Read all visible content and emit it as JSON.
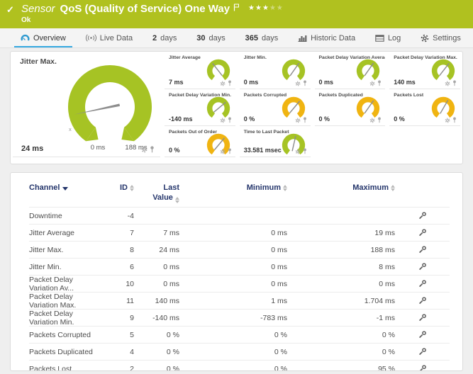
{
  "colors": {
    "header_bg": "#b0c11f",
    "gauge_green": "#a6c324",
    "gauge_yellow": "#f0b411",
    "accent_blue": "#36a9e1",
    "table_header": "#24356b"
  },
  "header": {
    "check_icon": "✓",
    "kind_label": "Sensor",
    "title": "QoS (Quality of Service) One Way",
    "status": "Ok",
    "stars_filled": "★★★",
    "stars_dim": "★★"
  },
  "tabs": [
    {
      "label": "Overview",
      "active": true
    },
    {
      "label": "Live Data"
    },
    {
      "number": "2",
      "label": "days"
    },
    {
      "number": "30",
      "label": "days"
    },
    {
      "number": "365",
      "label": "days"
    },
    {
      "label": "Historic Data"
    },
    {
      "label": "Log"
    },
    {
      "label": "Settings"
    }
  ],
  "gauges": {
    "main": {
      "title": "Jitter Max.",
      "value": "24 ms",
      "min_label": "0 ms",
      "max_label": "188 ms",
      "axis_hint": "x",
      "color": "#a6c324",
      "needle_angle": 168
    },
    "small": [
      {
        "title": "Jitter Average",
        "value": "7 ms",
        "color": "#a6c324",
        "needle_angle": 232
      },
      {
        "title": "Jitter Min.",
        "value": "0 ms",
        "color": "#a6c324",
        "needle_angle": 305
      },
      {
        "title": "Packet Delay Variation Average",
        "value": "0 ms",
        "color": "#a6c324",
        "needle_angle": 305
      },
      {
        "title": "Packet Delay Variation Max.",
        "value": "140 ms",
        "color": "#a6c324",
        "needle_angle": 308
      },
      {
        "title": "Packet Delay Variation Min.",
        "value": "-140 ms",
        "color": "#a6c324",
        "needle_angle": 320
      },
      {
        "title": "Packets Corrupted",
        "value": "0 %",
        "color": "#f0b411",
        "needle_angle": 310
      },
      {
        "title": "Packets Duplicated",
        "value": "0 %",
        "color": "#f0b411",
        "needle_angle": 305
      },
      {
        "title": "Packets Lost",
        "value": "0 %",
        "color": "#f0b411",
        "needle_angle": 300
      },
      {
        "title": "Packets Out of Order",
        "value": "0 %",
        "color": "#f0b411",
        "needle_angle": 310
      },
      {
        "title": "Time to Last Packet",
        "value": "33.581 msec",
        "color": "#a6c324",
        "needle_angle": 283
      }
    ]
  },
  "channel_table": {
    "columns": {
      "channel": "Channel",
      "id": "ID",
      "last": "Last Value",
      "min": "Minimum",
      "max": "Maximum"
    },
    "rows": [
      {
        "channel": "Downtime",
        "id": "-4",
        "last": "",
        "min": "",
        "max": ""
      },
      {
        "channel": "Jitter Average",
        "id": "7",
        "last": "7 ms",
        "min": "0 ms",
        "max": "19 ms"
      },
      {
        "channel": "Jitter Max.",
        "id": "8",
        "last": "24 ms",
        "min": "0 ms",
        "max": "188 ms"
      },
      {
        "channel": "Jitter Min.",
        "id": "6",
        "last": "0 ms",
        "min": "0 ms",
        "max": "8 ms"
      },
      {
        "channel": "Packet Delay Variation Av...",
        "id": "10",
        "last": "0 ms",
        "min": "0 ms",
        "max": "0 ms"
      },
      {
        "channel": "Packet Delay Variation Max.",
        "id": "11",
        "last": "140 ms",
        "min": "1 ms",
        "max": "1.704 ms"
      },
      {
        "channel": "Packet Delay Variation Min.",
        "id": "9",
        "last": "-140 ms",
        "min": "-783 ms",
        "max": "-1 ms"
      },
      {
        "channel": "Packets Corrupted",
        "id": "5",
        "last": "0 %",
        "min": "0 %",
        "max": "0 %"
      },
      {
        "channel": "Packets Duplicated",
        "id": "4",
        "last": "0 %",
        "min": "0 %",
        "max": "0 %"
      },
      {
        "channel": "Packets Lost",
        "id": "2",
        "last": "0 %",
        "min": "0 %",
        "max": "95 %"
      }
    ]
  }
}
